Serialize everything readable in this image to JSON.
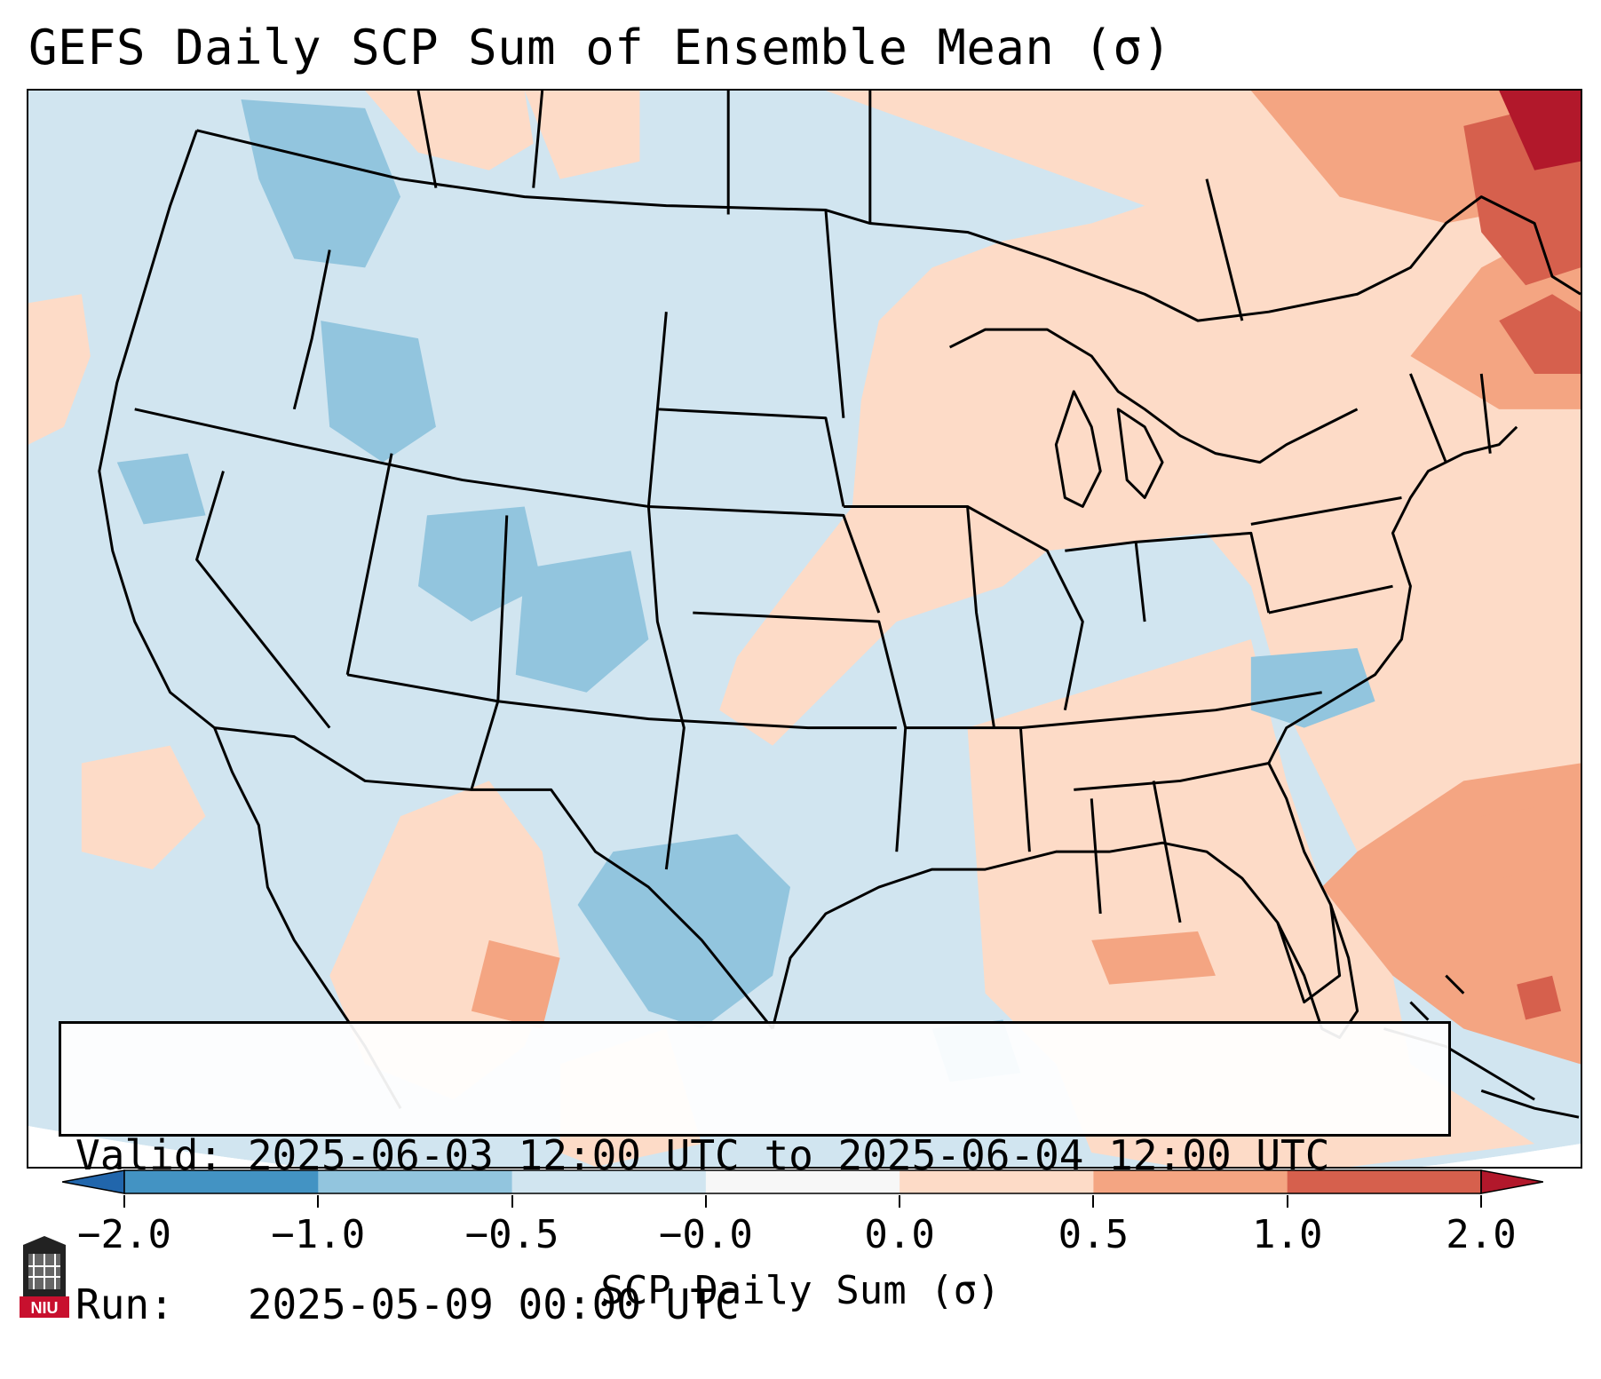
{
  "title": "GEFS Daily SCP Sum of Ensemble Mean (σ)",
  "info": {
    "valid_line": "Valid: 2025-06-03 12:00 UTC to 2025-06-04 12:00 UTC",
    "run_line": "Run:   2025-05-09 00:00 UTC"
  },
  "colorbar": {
    "label": "SCP Daily Sum (σ)",
    "ticks": [
      "−2.0",
      "−1.0",
      "−0.5",
      "−0.0",
      "0.0",
      "0.5",
      "1.0",
      "2.0"
    ],
    "colors": [
      "#4393c3",
      "#92c5de",
      "#d1e5f0",
      "#f7f7f7",
      "#fddbc7",
      "#f4a582",
      "#d6604d"
    ],
    "under_color": "#2166ac",
    "over_color": "#b2182b"
  },
  "logo": {
    "text": "NIU"
  },
  "map_colors": {
    "background_field": "#d1e5f0",
    "positive_light": "#fddbc7",
    "positive_mid": "#f4a582",
    "positive_high": "#d6604d",
    "positive_extreme": "#b2182b",
    "negative_mid": "#92c5de",
    "outside": "#ffffff",
    "borders": "#000000"
  }
}
